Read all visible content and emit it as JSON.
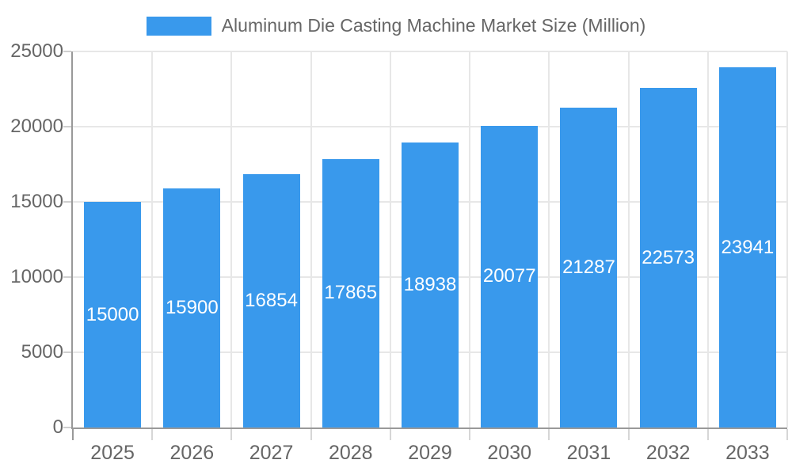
{
  "chart_data": {
    "type": "bar",
    "title": "Aluminum Die Casting Machine Market Size (Million)",
    "legend": {
      "label": "Aluminum Die Casting Machine Market Size (Million)",
      "position": "top"
    },
    "categories": [
      "2025",
      "2026",
      "2027",
      "2028",
      "2029",
      "2030",
      "2031",
      "2032",
      "2033"
    ],
    "values": [
      15000,
      15900,
      16854,
      17865,
      18938,
      20077,
      21287,
      22573,
      23941
    ],
    "bar_labels": [
      "15000",
      "15900",
      "16854",
      "17865",
      "18938",
      "20077",
      "21287",
      "22573",
      "23941"
    ],
    "xlabel": "",
    "ylabel": "",
    "ylim": [
      0,
      25000
    ],
    "yticks": [
      0,
      5000,
      10000,
      15000,
      20000,
      25000
    ],
    "ytick_labels": [
      "0",
      "5000",
      "10000",
      "15000",
      "20000",
      "25000"
    ],
    "grid": true,
    "colors": {
      "bar": "#3999EC",
      "bar_label_text": "#ffffff",
      "axis_line": "#999999",
      "gridline": "#e7e7e7",
      "tick_text": "#666666",
      "legend_text": "#666666"
    }
  }
}
